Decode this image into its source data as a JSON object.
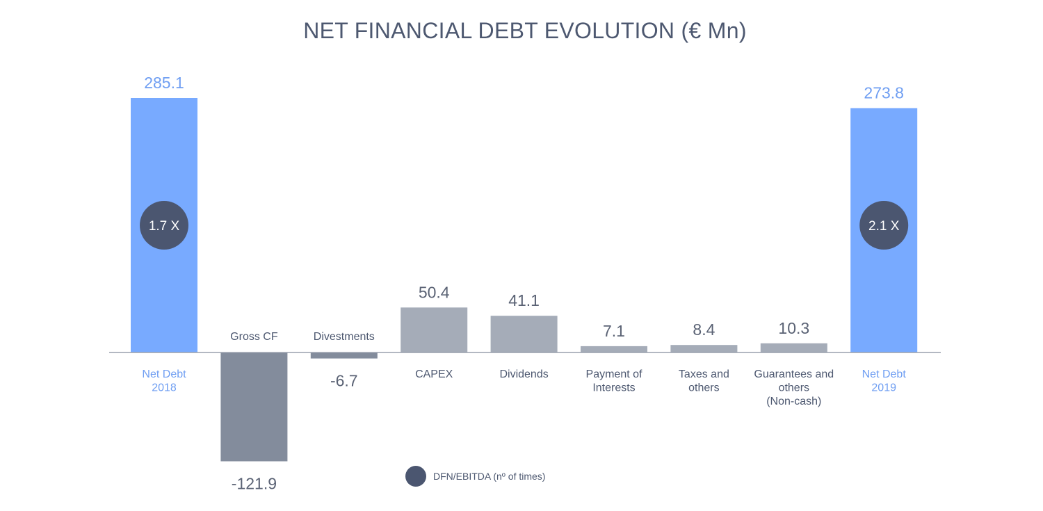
{
  "chart_data": {
    "type": "bar",
    "title": "NET FINANCIAL DEBT EVOLUTION  (€ Mn)",
    "categories": [
      [
        "Net Debt",
        "2018"
      ],
      [
        "Gross CF"
      ],
      [
        "Divestments"
      ],
      [
        "CAPEX"
      ],
      [
        "Dividends"
      ],
      [
        "Payment of",
        "Interests"
      ],
      [
        "Taxes and",
        "others"
      ],
      [
        "Guarantees and",
        "others",
        "(Non-cash)"
      ],
      [
        "Net Debt",
        "2019"
      ]
    ],
    "values": [
      285.1,
      -121.9,
      -6.7,
      50.4,
      41.1,
      7.1,
      8.4,
      10.3,
      273.8
    ],
    "value_labels": [
      "285.1",
      "-121.9",
      "-6.7",
      "50.4",
      "41.1",
      "7.1",
      "8.4",
      "10.3",
      "273.8"
    ],
    "kinds": [
      "total",
      "change",
      "change",
      "change",
      "change",
      "change",
      "change",
      "change",
      "total"
    ],
    "ratios": [
      {
        "index": 0,
        "label": "1.7 X"
      },
      {
        "index": 8,
        "label": "2.1 X"
      }
    ],
    "legend": {
      "label": "DFN/EBITDA (nº of times)"
    },
    "colors": {
      "total": "#78aaff",
      "positive": "#a5acb8",
      "negative": "#838c9c",
      "ratio_circle": "#4b5670",
      "axis": "#9aa1ad",
      "title": "#4d5870"
    }
  }
}
